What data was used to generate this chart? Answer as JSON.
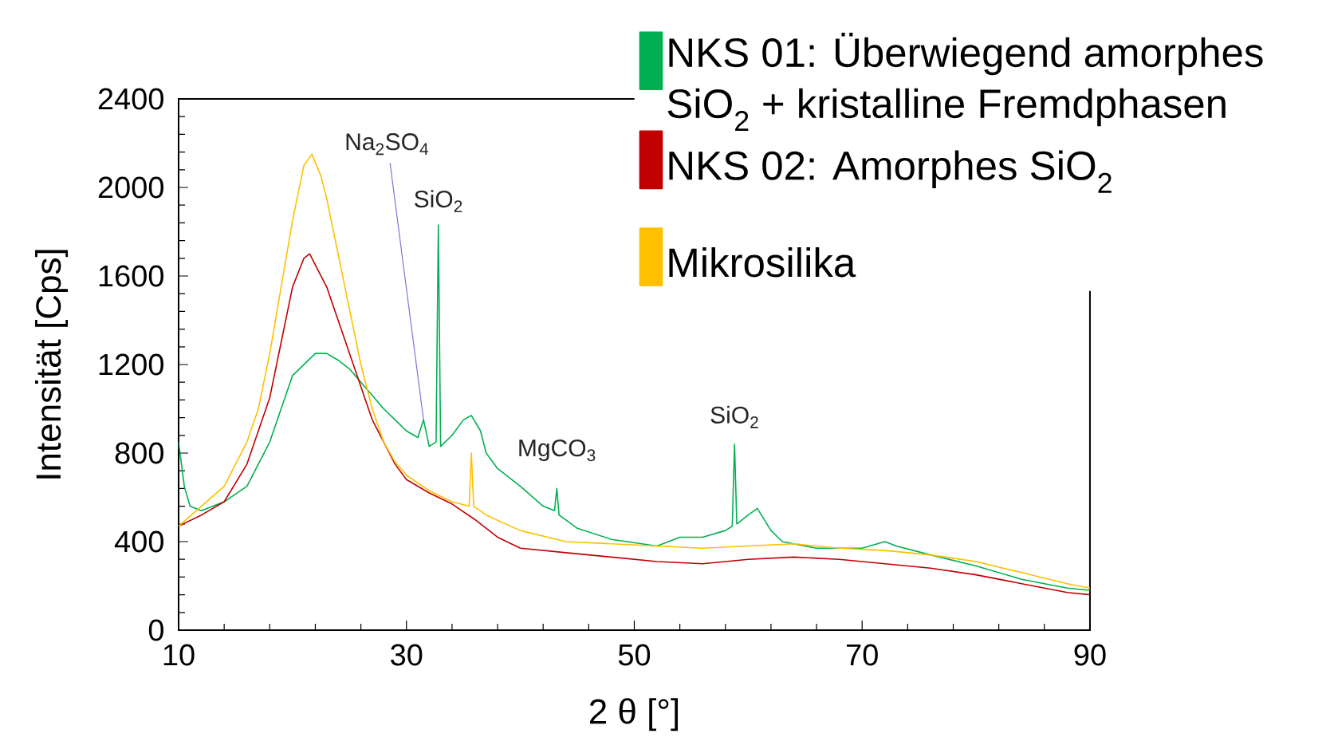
{
  "chart_data": {
    "type": "line",
    "xlabel": "2 θ [°]",
    "ylabel": "Intensität [Cps]",
    "xlim": [
      10,
      90
    ],
    "ylim": [
      0,
      2400
    ],
    "xticks": [
      10,
      30,
      50,
      70,
      90
    ],
    "yticks": [
      0,
      400,
      800,
      1200,
      1600,
      2000,
      2400
    ],
    "legend": "top right",
    "grid": false,
    "marker": "none",
    "line_style": "solid",
    "annotations": [
      {
        "text": "Na$_{2}$SO$_{4}$",
        "x": 31.5,
        "y": 950
      },
      {
        "text": "SiO$_{2}$",
        "x": 32.8,
        "y": 1830
      },
      {
        "text": "MgCO$_{3}$",
        "x": 43.2,
        "y": 640
      },
      {
        "text": "SiO$_{2}$",
        "x": 58.8,
        "y": 840
      }
    ],
    "series": [
      {
        "name": "NKS 01: Überwiegend amorphes SiO$_{2}$ + kristalline Fremdphasen",
        "color": "#00b050",
        "x": [
          10,
          10.5,
          11,
          12,
          14,
          16,
          18,
          19,
          20,
          21,
          22,
          23,
          24,
          25,
          26,
          27,
          28,
          29,
          30,
          31,
          31.5,
          32,
          32.6,
          32.8,
          33,
          34,
          35,
          35.7,
          36.5,
          37,
          38,
          40,
          42,
          43,
          43.2,
          43.4,
          45,
          48,
          52,
          54,
          56,
          58,
          58.6,
          58.8,
          59,
          60,
          60.8,
          62,
          63,
          66,
          70,
          72,
          73,
          76,
          80,
          84,
          88,
          90
        ],
        "values": [
          850,
          650,
          560,
          540,
          580,
          650,
          850,
          1000,
          1150,
          1200,
          1250,
          1250,
          1220,
          1180,
          1120,
          1060,
          1000,
          950,
          900,
          870,
          950,
          830,
          850,
          1830,
          830,
          880,
          950,
          970,
          900,
          800,
          730,
          650,
          560,
          540,
          640,
          520,
          460,
          410,
          380,
          420,
          420,
          450,
          470,
          840,
          480,
          520,
          550,
          450,
          400,
          370,
          370,
          400,
          380,
          340,
          290,
          230,
          190,
          180
        ]
      },
      {
        "name": "NKS 02: Amorphes SiO$_{2}$",
        "color": "#c00000",
        "x": [
          10,
          12,
          14,
          16,
          18,
          19,
          20,
          21,
          21.5,
          22,
          23,
          24,
          25,
          26,
          27,
          28,
          29,
          30,
          32,
          34,
          36,
          38,
          40,
          44,
          48,
          52,
          56,
          60,
          64,
          68,
          72,
          76,
          80,
          84,
          88,
          90
        ],
        "values": [
          470,
          520,
          580,
          750,
          1050,
          1300,
          1550,
          1680,
          1700,
          1650,
          1550,
          1400,
          1250,
          1100,
          950,
          850,
          750,
          680,
          620,
          570,
          500,
          420,
          370,
          350,
          330,
          310,
          300,
          320,
          330,
          320,
          300,
          280,
          250,
          210,
          170,
          160
        ]
      },
      {
        "name": "Mikrosilika",
        "color": "#ffc000",
        "x": [
          10,
          12,
          14,
          16,
          17,
          18,
          19,
          20,
          21,
          21.7,
          22.5,
          23,
          24,
          25,
          26,
          27,
          28,
          29,
          30,
          32,
          34,
          35.5,
          35.7,
          35.9,
          37,
          40,
          44,
          48,
          52,
          56,
          60,
          64,
          68,
          72,
          76,
          80,
          84,
          88,
          90
        ],
        "values": [
          470,
          560,
          650,
          850,
          1000,
          1250,
          1550,
          1850,
          2100,
          2150,
          2050,
          1950,
          1700,
          1450,
          1200,
          1000,
          850,
          760,
          700,
          630,
          580,
          560,
          800,
          560,
          520,
          450,
          400,
          390,
          380,
          370,
          380,
          390,
          370,
          360,
          340,
          310,
          260,
          210,
          190
        ]
      }
    ]
  }
}
